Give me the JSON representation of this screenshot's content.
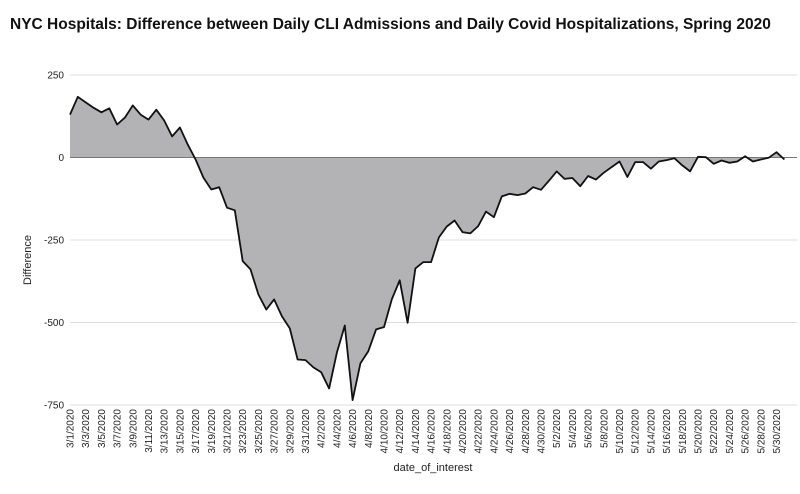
{
  "chart_data": {
    "type": "area",
    "title": "NYC Hospitals: Difference between Daily CLI Admissions and Daily Covid Hospitalizations, Spring 2020",
    "xlabel": "date_of_interest",
    "ylabel": "Difference",
    "ylim": [
      -750,
      250
    ],
    "y_ticks": [
      250,
      0,
      -250,
      -500,
      -750
    ],
    "grid": true,
    "fill_color": "#b3b2b4",
    "line_color": "#111111",
    "x_tick_labels": [
      "3/1/2020",
      "3/3/2020",
      "3/5/2020",
      "3/7/2020",
      "3/9/2020",
      "3/11/2020",
      "3/13/2020",
      "3/15/2020",
      "3/17/2020",
      "3/19/2020",
      "3/21/2020",
      "3/23/2020",
      "3/25/2020",
      "3/27/2020",
      "3/29/2020",
      "3/31/2020",
      "4/2/2020",
      "4/4/2020",
      "4/6/2020",
      "4/8/2020",
      "4/10/2020",
      "4/12/2020",
      "4/14/2020",
      "4/16/2020",
      "4/18/2020",
      "4/20/2020",
      "4/22/2020",
      "4/24/2020",
      "4/26/2020",
      "4/28/2020",
      "4/30/2020",
      "5/2/2020",
      "5/4/2020",
      "5/6/2020",
      "5/8/2020",
      "5/10/2020",
      "5/12/2020",
      "5/14/2020",
      "5/16/2020",
      "5/18/2020",
      "5/20/2020",
      "5/22/2020",
      "5/24/2020",
      "5/26/2020",
      "5/28/2020",
      "5/30/2020"
    ],
    "x_start": "3/1/2020",
    "x_end": "5/31/2020",
    "values": [
      130,
      184,
      167,
      151,
      137,
      149,
      100,
      121,
      158,
      130,
      115,
      145,
      112,
      64,
      91,
      39,
      -6,
      -61,
      -97,
      -90,
      -152,
      -160,
      -314,
      -339,
      -415,
      -461,
      -430,
      -481,
      -518,
      -612,
      -614,
      -636,
      -651,
      -700,
      -591,
      -509,
      -735,
      -624,
      -587,
      -521,
      -514,
      -430,
      -372,
      -501,
      -336,
      -317,
      -317,
      -242,
      -209,
      -191,
      -226,
      -230,
      -208,
      -164,
      -181,
      -118,
      -110,
      -114,
      -109,
      -90,
      -98,
      -71,
      -42,
      -65,
      -62,
      -87,
      -56,
      -67,
      -46,
      -29,
      -12,
      -59,
      -14,
      -14,
      -34,
      -12,
      -8,
      -2,
      -24,
      -42,
      2,
      1,
      -19,
      -9,
      -16,
      -12,
      4,
      -12,
      -6,
      -1,
      16,
      -6
    ]
  }
}
